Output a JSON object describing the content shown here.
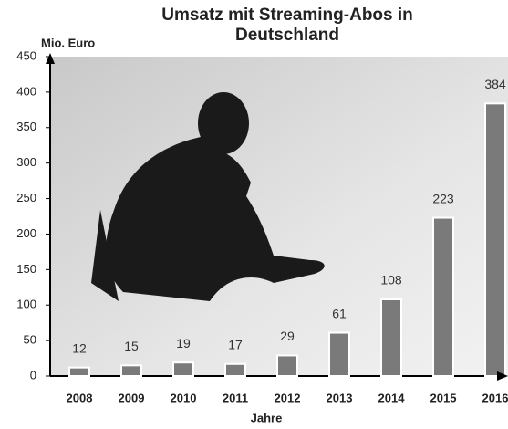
{
  "chart_data": {
    "type": "bar",
    "title": "Umsatz mit Streaming-Abos in Deutschland",
    "y_label": "Mio. Euro",
    "x_label": "Jahre",
    "categories": [
      "2008",
      "2009",
      "2010",
      "2011",
      "2012",
      "2013",
      "2014",
      "2015",
      "2016"
    ],
    "values": [
      12,
      15,
      19,
      17,
      29,
      61,
      108,
      223,
      384
    ],
    "color": "#7a7a7a",
    "ylim": [
      0,
      450
    ],
    "yticks": [
      0,
      50,
      100,
      150,
      200,
      250,
      300,
      350,
      400,
      450
    ]
  }
}
